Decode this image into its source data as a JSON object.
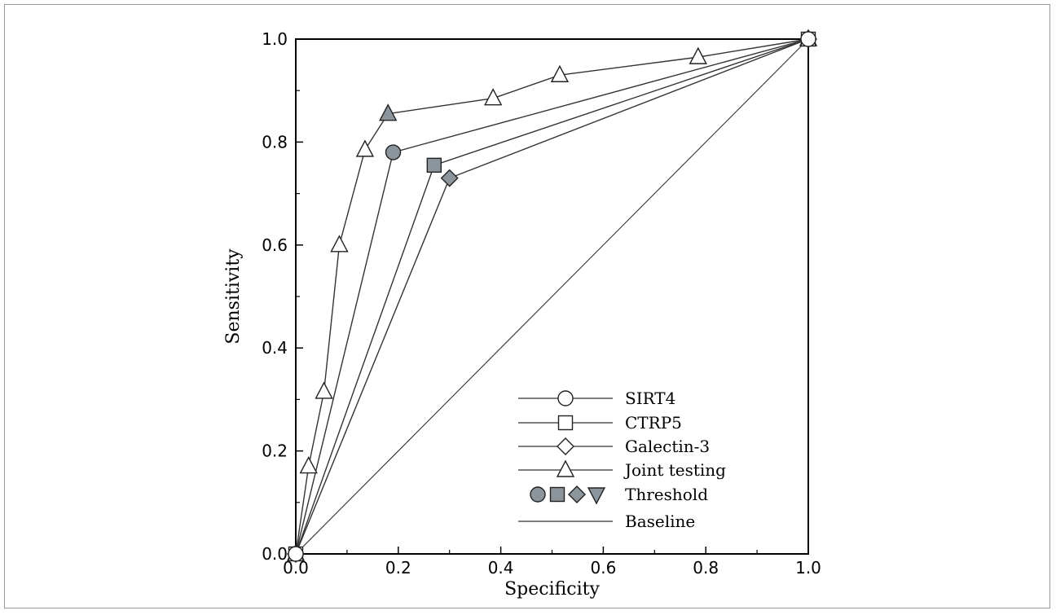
{
  "chart_data": {
    "type": "line",
    "title": "",
    "xlabel": "Specificity",
    "ylabel": "Sensitivity",
    "xlim": [
      0,
      1
    ],
    "ylim": [
      0,
      1
    ],
    "x_ticks": [
      "0.0",
      "0.2",
      "0.4",
      "0.6",
      "0.8",
      "1.0"
    ],
    "y_ticks": [
      "0.0",
      "0.2",
      "0.4",
      "0.6",
      "0.8",
      "1.0"
    ],
    "grid": false,
    "legend_position": "bottom-right",
    "series": [
      {
        "name": "SIRT4",
        "marker": "circle",
        "x": [
          0.0,
          0.19,
          1.0
        ],
        "y": [
          0.0,
          0.78,
          1.0
        ],
        "threshold_index": 1
      },
      {
        "name": "CTRP5",
        "marker": "square",
        "x": [
          0.0,
          0.27,
          1.0
        ],
        "y": [
          0.0,
          0.755,
          1.0
        ],
        "threshold_index": 1
      },
      {
        "name": "Galectin-3",
        "marker": "diamond",
        "x": [
          0.0,
          0.3,
          1.0
        ],
        "y": [
          0.0,
          0.73,
          1.0
        ],
        "threshold_index": 1
      },
      {
        "name": "Joint testing",
        "marker": "triangle",
        "x": [
          0.0,
          0.025,
          0.055,
          0.085,
          0.135,
          0.18,
          0.385,
          0.515,
          0.785,
          1.0
        ],
        "y": [
          0.0,
          0.17,
          0.315,
          0.6,
          0.785,
          0.855,
          0.885,
          0.93,
          0.965,
          1.0
        ],
        "threshold_index": 5
      },
      {
        "name": "Baseline",
        "marker": "none",
        "x": [
          0.0,
          1.0
        ],
        "y": [
          0.0,
          1.0
        ]
      }
    ],
    "legend_entries": [
      {
        "label": "SIRT4",
        "marker": "circle"
      },
      {
        "label": "CTRP5",
        "marker": "square"
      },
      {
        "label": "Galectin-3",
        "marker": "diamond"
      },
      {
        "label": "Joint testing",
        "marker": "triangle"
      },
      {
        "label": "Threshold",
        "marker": "threshold"
      },
      {
        "label": "Baseline",
        "marker": "none"
      }
    ],
    "colors": {
      "line": "#333333",
      "hollow_fill": "#ffffff",
      "threshold_fill": "#8c959c",
      "marker_stroke": "#222222"
    }
  }
}
